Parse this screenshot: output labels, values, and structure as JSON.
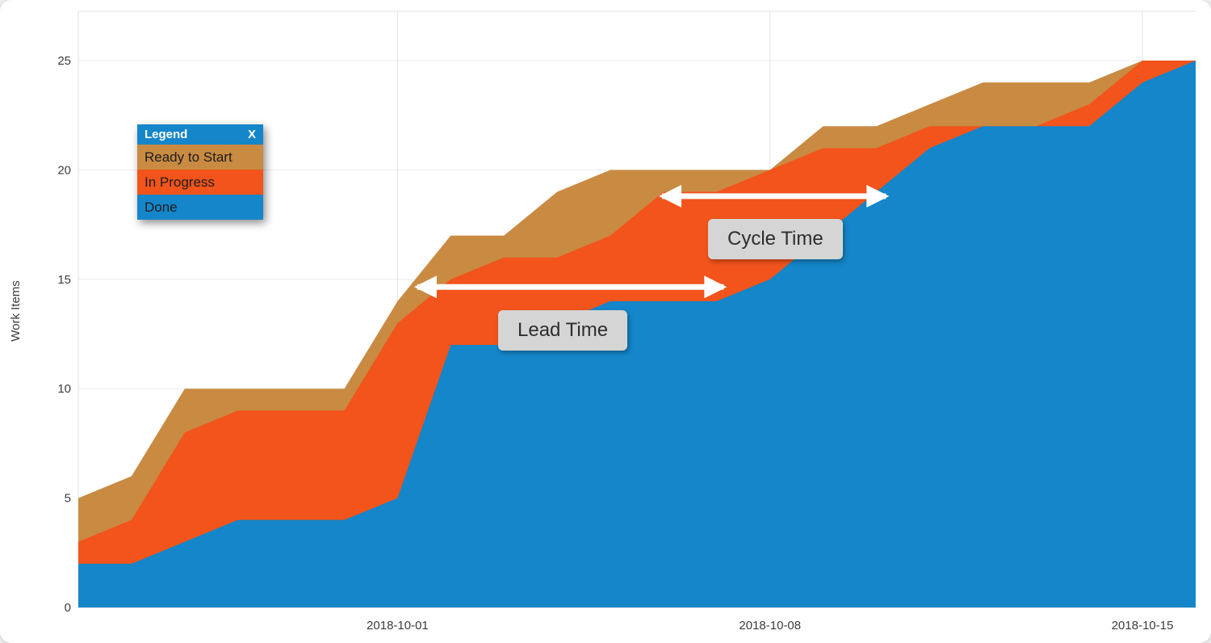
{
  "chart_data": {
    "type": "area",
    "stacked": true,
    "title": "",
    "ylabel": "Work Items",
    "ylim": [
      0,
      25
    ],
    "y_ticks": [
      0,
      5,
      10,
      15,
      20,
      25
    ],
    "grid": true,
    "dates": [
      "2018-09-25",
      "2018-09-26",
      "2018-09-27",
      "2018-09-28",
      "2018-09-29",
      "2018-09-30",
      "2018-10-01",
      "2018-10-02",
      "2018-10-03",
      "2018-10-04",
      "2018-10-05",
      "2018-10-06",
      "2018-10-07",
      "2018-10-08",
      "2018-10-09",
      "2018-10-10",
      "2018-10-11",
      "2018-10-12",
      "2018-10-13",
      "2018-10-14",
      "2018-10-15",
      "2018-10-16"
    ],
    "x_tick_labels": [
      {
        "label": "2018-10-01",
        "day": 6
      },
      {
        "label": "2018-10-08",
        "day": 13
      },
      {
        "label": "2018-10-15",
        "day": 20
      }
    ],
    "series": [
      {
        "name": "Done",
        "color": "#1486c9",
        "cumulative": [
          2,
          2,
          3,
          4,
          4,
          4,
          5,
          12,
          12,
          13,
          14,
          14,
          14,
          15,
          17,
          19,
          21,
          22,
          22,
          22,
          24,
          25
        ]
      },
      {
        "name": "In Progress",
        "color": "#f2541b",
        "cumulative": [
          3,
          4,
          8,
          9,
          9,
          9,
          13,
          15,
          16,
          16,
          17,
          19,
          19,
          20,
          21,
          21,
          22,
          22,
          22,
          23,
          25,
          25
        ]
      },
      {
        "name": "Ready to Start",
        "color": "#c98a42",
        "cumulative": [
          5,
          6,
          10,
          10,
          10,
          10,
          14,
          17,
          17,
          19,
          20,
          20,
          20,
          20,
          22,
          22,
          23,
          24,
          24,
          24,
          25,
          25
        ]
      }
    ],
    "annotations": [
      {
        "label": "Lead Time",
        "arrow": {
          "x1_day": 6.25,
          "x2_day": 12.25,
          "y_value": 14.65
        }
      },
      {
        "label": "Cycle Time",
        "arrow": {
          "x1_day": 10.85,
          "x2_day": 15.3,
          "y_value": 18.8
        }
      }
    ],
    "arrow_color": "#ffffff"
  },
  "legend": {
    "title": "Legend",
    "close_label": "X",
    "header_color": "#1486c9",
    "items": [
      {
        "label": "Ready to Start",
        "color": "#c98a42"
      },
      {
        "label": "In Progress",
        "color": "#f2541b"
      },
      {
        "label": "Done",
        "color": "#1486c9"
      }
    ]
  }
}
